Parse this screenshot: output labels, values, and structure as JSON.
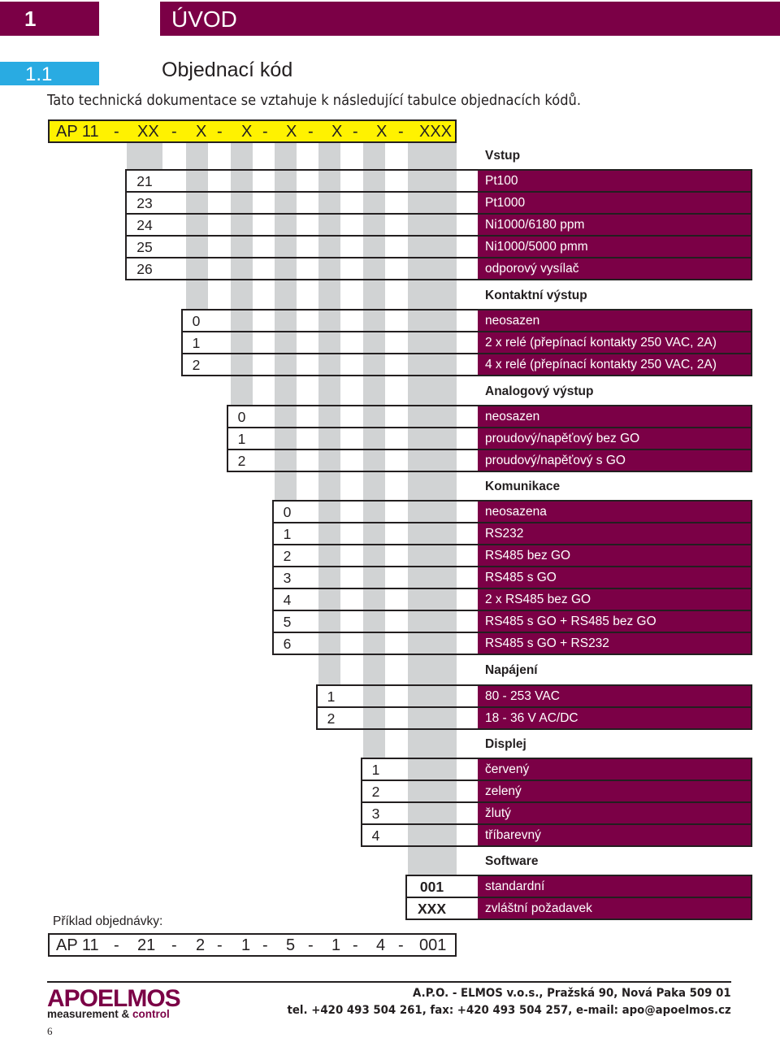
{
  "chapter": {
    "number": "1",
    "title": "ÚVOD"
  },
  "section": {
    "number": "1.1",
    "title": "Objednací kód"
  },
  "intro": "Tato technická dokumentace se vztahuje k následující tabulce objednacích kódů.",
  "code_template": [
    "AP 11",
    "-",
    "XX",
    "-",
    "X",
    "-",
    "X",
    "-",
    "X",
    "-",
    "X",
    "-",
    "X",
    "-",
    "XXX"
  ],
  "groups": [
    {
      "title": "Vstup",
      "rows": [
        {
          "code": "21",
          "desc": "Pt100"
        },
        {
          "code": "23",
          "desc": "Pt1000"
        },
        {
          "code": "24",
          "desc": "Ni1000/6180 ppm"
        },
        {
          "code": "25",
          "desc": "Ni1000/5000 pmm"
        },
        {
          "code": "26",
          "desc": "odporový vysílač"
        }
      ]
    },
    {
      "title": "Kontaktní výstup",
      "rows": [
        {
          "code": "0",
          "desc": "neosazen"
        },
        {
          "code": "1",
          "desc": "2 x relé (přepínací kontakty 250 VAC, 2A)"
        },
        {
          "code": "2",
          "desc": "4 x relé (přepínací kontakty 250 VAC, 2A)"
        }
      ]
    },
    {
      "title": "Analogový výstup",
      "rows": [
        {
          "code": "0",
          "desc": "neosazen"
        },
        {
          "code": "1",
          "desc": "proudový/napěťový bez GO"
        },
        {
          "code": "2",
          "desc": "proudový/napěťový s GO"
        }
      ]
    },
    {
      "title": "Komunikace",
      "rows": [
        {
          "code": "0",
          "desc": "neosazena"
        },
        {
          "code": "1",
          "desc": "RS232"
        },
        {
          "code": "2",
          "desc": "RS485 bez GO"
        },
        {
          "code": "3",
          "desc": "RS485 s GO"
        },
        {
          "code": "4",
          "desc": "2 x RS485 bez GO"
        },
        {
          "code": "5",
          "desc": "RS485 s GO + RS485 bez GO"
        },
        {
          "code": "6",
          "desc": "RS485 s GO + RS232"
        }
      ]
    },
    {
      "title": "Napájení",
      "rows": [
        {
          "code": "1",
          "desc": "80 - 253 VAC"
        },
        {
          "code": "2",
          "desc": "18 - 36 V AC/DC"
        }
      ]
    },
    {
      "title": "Displej",
      "rows": [
        {
          "code": "1",
          "desc": "červený"
        },
        {
          "code": "2",
          "desc": "zelený"
        },
        {
          "code": "3",
          "desc": "žlutý"
        },
        {
          "code": "4",
          "desc": "tříbarevný"
        }
      ]
    },
    {
      "title": "Software",
      "rows": [
        {
          "code": "001",
          "desc": "standardní"
        },
        {
          "code": "XXX",
          "desc": "zvláštní požadavek"
        }
      ]
    }
  ],
  "example": {
    "label": "Příklad objednávky:",
    "code": [
      "AP 11",
      "-",
      "21",
      "-",
      "2",
      "-",
      "1",
      "-",
      "5",
      "-",
      "1",
      "-",
      "4",
      "-",
      "001"
    ]
  },
  "footer": {
    "logo_main": "APOELMOS",
    "logo_sub_1": "measurement & ",
    "logo_sub_2": "control",
    "address": "A.P.O. - ELMOS v.o.s., Pražská 90, Nová Paka 509 01",
    "contact": "tel. +420 493 504 261, fax: +420 493 504 257, e-mail: apo@apoelmos.cz",
    "page": "6"
  },
  "colors": {
    "accent": "#7b0046",
    "section": "#29abe2",
    "highlight": "#fff200",
    "column": "#d1d3d4"
  }
}
